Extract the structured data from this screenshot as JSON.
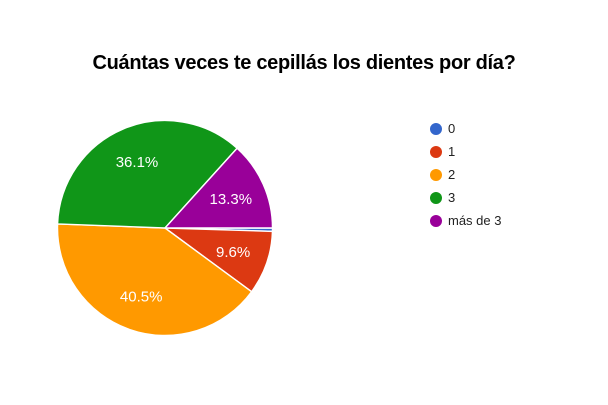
{
  "chart_data": {
    "type": "pie",
    "title": "Cuántas veces te cepillás los dientes por día?",
    "categories": [
      "0",
      "1",
      "2",
      "3",
      "más de 3"
    ],
    "values": [
      0.5,
      9.6,
      40.5,
      36.1,
      13.3
    ],
    "unit": "percent",
    "colors": [
      "#3366CC",
      "#DC3912",
      "#FF9900",
      "#109618",
      "#990099"
    ],
    "slice_labels": [
      "",
      "9.6%",
      "40.5%",
      "36.1%",
      "13.3%"
    ],
    "legend_position": "right",
    "start_angle_deg": 0,
    "direction": "clockwise",
    "slice_border_color": "#ffffff",
    "slice_label_color": "#ffffff",
    "background_color": "#ffffff",
    "title_color": "#000000",
    "legend_text_color": "#222222"
  }
}
